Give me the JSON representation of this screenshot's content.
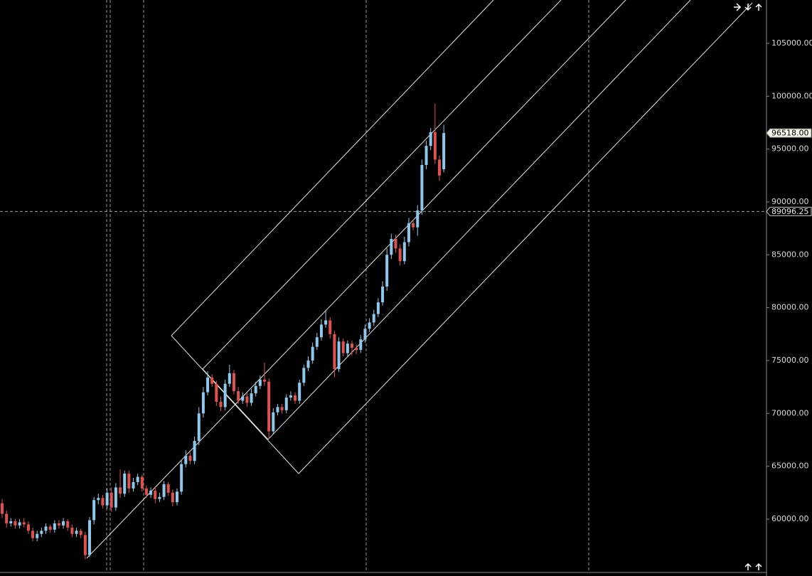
{
  "chart_data": {
    "type": "candlestick",
    "categories": [
      null,
      null,
      null,
      null,
      null,
      null,
      null,
      null,
      null,
      null,
      null,
      null,
      null,
      null,
      null,
      null,
      null,
      null,
      null,
      null,
      null,
      null,
      null,
      null,
      null,
      null,
      null,
      null,
      null,
      null,
      null,
      null,
      null,
      null,
      null,
      null,
      null,
      null,
      null,
      null,
      null,
      null,
      null,
      null,
      null,
      null,
      null,
      null,
      null,
      null,
      null,
      null,
      null,
      null,
      null,
      null,
      null,
      null,
      null,
      null,
      null,
      null,
      null,
      null,
      null,
      null,
      null,
      null,
      null,
      null,
      null,
      null,
      null,
      null,
      null,
      null,
      null,
      null,
      null,
      null,
      null,
      null,
      null,
      null,
      null,
      null,
      null,
      null,
      null,
      null,
      null,
      null,
      null,
      null,
      null,
      null,
      null,
      null,
      null,
      null,
      null,
      null
    ],
    "open": [
      61500,
      60500,
      59600,
      59800,
      59400,
      59700,
      59500,
      58900,
      58200,
      58600,
      58900,
      59300,
      59000,
      59600,
      59400,
      59800,
      59200,
      58600,
      58900,
      58500,
      56600,
      59900,
      61800,
      62000,
      61300,
      62500,
      61100,
      63000,
      62400,
      64300,
      62900,
      63500,
      64000,
      62900,
      62300,
      62700,
      61900,
      62100,
      63300,
      62500,
      61600,
      62600,
      65200,
      66000,
      65500,
      67400,
      70000,
      72000,
      73400,
      72800,
      71100,
      70600,
      72800,
      73800,
      72100,
      71200,
      71600,
      71000,
      71900,
      72600,
      73200,
      73000,
      68300,
      70100,
      70600,
      70300,
      71500,
      71700,
      71200,
      72900,
      74300,
      75000,
      76300,
      77200,
      78400,
      78800,
      77500,
      74200,
      76800,
      75700,
      76600,
      76200,
      76000,
      77000,
      78000,
      78600,
      79400,
      80500,
      82000,
      85000,
      86500,
      85600,
      84400,
      86200,
      88000,
      87600,
      89200,
      93500,
      95300,
      96600,
      94000,
      93100
    ],
    "high": [
      61900,
      60800,
      60100,
      60000,
      60000,
      60100,
      59800,
      59200,
      58900,
      59200,
      59600,
      59500,
      59900,
      59900,
      60100,
      60000,
      59500,
      59200,
      59100,
      58800,
      60200,
      62100,
      62400,
      62300,
      62900,
      63000,
      63400,
      64700,
      64600,
      64600,
      63900,
      64300,
      64200,
      63200,
      63000,
      63100,
      62500,
      63600,
      63500,
      62800,
      62900,
      65600,
      66500,
      66300,
      67800,
      70600,
      72500,
      74000,
      73700,
      73100,
      71600,
      73200,
      74600,
      74100,
      72500,
      72000,
      71900,
      72300,
      73000,
      73600,
      74800,
      73300,
      70500,
      70900,
      70900,
      71800,
      72100,
      72000,
      73200,
      74600,
      75400,
      76700,
      77600,
      78900,
      79800,
      79100,
      77800,
      77200,
      77100,
      76900,
      76900,
      76500,
      77400,
      78400,
      79000,
      79800,
      80900,
      82500,
      85600,
      87000,
      86900,
      86000,
      86700,
      88500,
      88300,
      89700,
      94000,
      95800,
      97000,
      99300,
      94400,
      97300
    ],
    "low": [
      60100,
      59200,
      59300,
      59100,
      59100,
      59200,
      58600,
      57900,
      57900,
      58300,
      58600,
      58700,
      58700,
      59100,
      59100,
      58900,
      58300,
      58300,
      58200,
      56200,
      56400,
      59500,
      61400,
      61000,
      61000,
      60700,
      60800,
      62000,
      62100,
      62500,
      62600,
      63200,
      62600,
      62000,
      62000,
      61500,
      61600,
      61800,
      62200,
      61200,
      61300,
      62300,
      64900,
      65200,
      65200,
      67000,
      69600,
      71700,
      72500,
      70700,
      70200,
      70300,
      72500,
      71800,
      70900,
      70900,
      70600,
      70700,
      71600,
      72300,
      72600,
      67600,
      68000,
      69800,
      70000,
      70000,
      71200,
      70900,
      70900,
      72600,
      74000,
      74700,
      76000,
      76900,
      78100,
      77100,
      73400,
      73900,
      75400,
      75400,
      75500,
      75600,
      75700,
      76700,
      77700,
      78300,
      79100,
      80200,
      81600,
      84600,
      85200,
      84000,
      84100,
      85800,
      87300,
      86800,
      88800,
      93100,
      94900,
      93600,
      92000,
      92800
    ],
    "close": [
      60500,
      59600,
      59800,
      59400,
      59700,
      59500,
      58900,
      58200,
      58600,
      58900,
      59300,
      59000,
      59600,
      59400,
      59800,
      59200,
      58600,
      58900,
      58500,
      56600,
      59900,
      61800,
      62000,
      61300,
      62500,
      61100,
      63000,
      62400,
      64300,
      62900,
      63500,
      64000,
      62900,
      62300,
      62700,
      61900,
      62100,
      63300,
      62500,
      61600,
      62600,
      65200,
      66000,
      65500,
      67400,
      70000,
      72000,
      73400,
      72800,
      71100,
      70600,
      72800,
      73800,
      72100,
      71200,
      71600,
      71000,
      71900,
      72600,
      73200,
      73000,
      68300,
      70100,
      70600,
      70300,
      71500,
      71700,
      71200,
      72900,
      74300,
      75000,
      76300,
      77200,
      78400,
      78800,
      77500,
      74200,
      76800,
      75700,
      76600,
      76200,
      76000,
      77000,
      78000,
      78600,
      79400,
      80500,
      82000,
      85000,
      86500,
      85600,
      84400,
      86200,
      88000,
      87600,
      89200,
      93500,
      95300,
      96600,
      94000,
      92500,
      96518
    ],
    "up_color": "#8ec8ec",
    "down_color": "#e05252",
    "ylim": [
      54955,
      109103
    ],
    "yticks": [
      {
        "value": 60000,
        "label": "60000.00"
      },
      {
        "value": 65000,
        "label": "65000.00"
      },
      {
        "value": 70000,
        "label": "70000.00"
      },
      {
        "value": 75000,
        "label": "75000.00"
      },
      {
        "value": 80000,
        "label": "80000.00"
      },
      {
        "value": 85000,
        "label": "85000.00"
      },
      {
        "value": 90000,
        "label": "90000.00"
      },
      {
        "value": 95000,
        "label": "95000.00"
      },
      {
        "value": 100000,
        "label": "100000.00"
      },
      {
        "value": 105000,
        "label": "105000.00"
      }
    ],
    "last_price": {
      "value": 96518,
      "label": "96518.00"
    },
    "crosshair_price": {
      "value": 89096.25,
      "label": "89096.25"
    },
    "grid": false
  }
}
